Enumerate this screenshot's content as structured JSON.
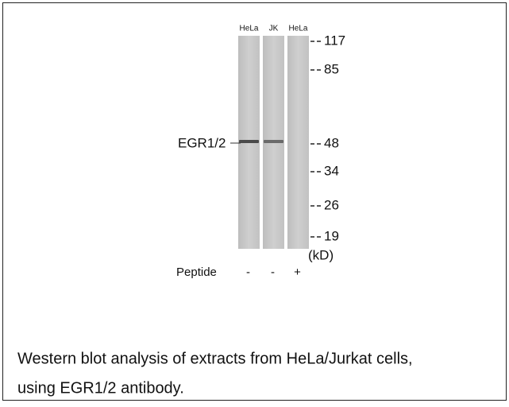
{
  "figure": {
    "lanes": [
      {
        "label": "HeLa",
        "peptide": "-"
      },
      {
        "label": "JK",
        "peptide": "-"
      },
      {
        "label": "HeLa",
        "peptide": "+"
      }
    ],
    "band_label": "EGR1/2",
    "markers": [
      "117",
      "85",
      "48",
      "34",
      "26",
      "19"
    ],
    "unit": "(kD)",
    "peptide_label": "Peptide"
  },
  "caption": [
    "Western blot analysis of extracts from HeLa/Jurkat cells,",
    "using EGR1/2 antibody."
  ]
}
